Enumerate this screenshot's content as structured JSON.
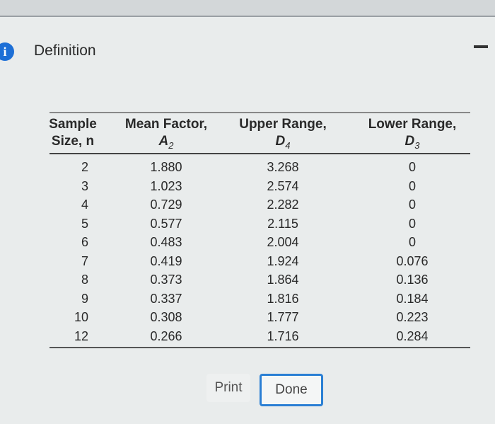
{
  "header": {
    "title": "Definition"
  },
  "table": {
    "columns": [
      {
        "lines": [
          "Sample",
          "Size, n"
        ]
      },
      {
        "lines": [
          "Mean Factor,"
        ],
        "symbol": "A",
        "subscript": "2"
      },
      {
        "lines": [
          "Upper Range,"
        ],
        "symbol": "D",
        "subscript": "4"
      },
      {
        "lines": [
          "Lower Range,"
        ],
        "symbol": "D",
        "subscript": "3"
      }
    ],
    "rows": [
      [
        "2",
        "1.880",
        "3.268",
        "0"
      ],
      [
        "3",
        "1.023",
        "2.574",
        "0"
      ],
      [
        "4",
        "0.729",
        "2.282",
        "0"
      ],
      [
        "5",
        "0.577",
        "2.115",
        "0"
      ],
      [
        "6",
        "0.483",
        "2.004",
        "0"
      ],
      [
        "7",
        "0.419",
        "1.924",
        "0.076"
      ],
      [
        "8",
        "0.373",
        "1.864",
        "0.136"
      ],
      [
        "9",
        "0.337",
        "1.816",
        "0.184"
      ],
      [
        "10",
        "0.308",
        "1.777",
        "0.223"
      ],
      [
        "12",
        "0.266",
        "1.716",
        "0.284"
      ]
    ]
  },
  "buttons": [
    "Print",
    "Done"
  ]
}
